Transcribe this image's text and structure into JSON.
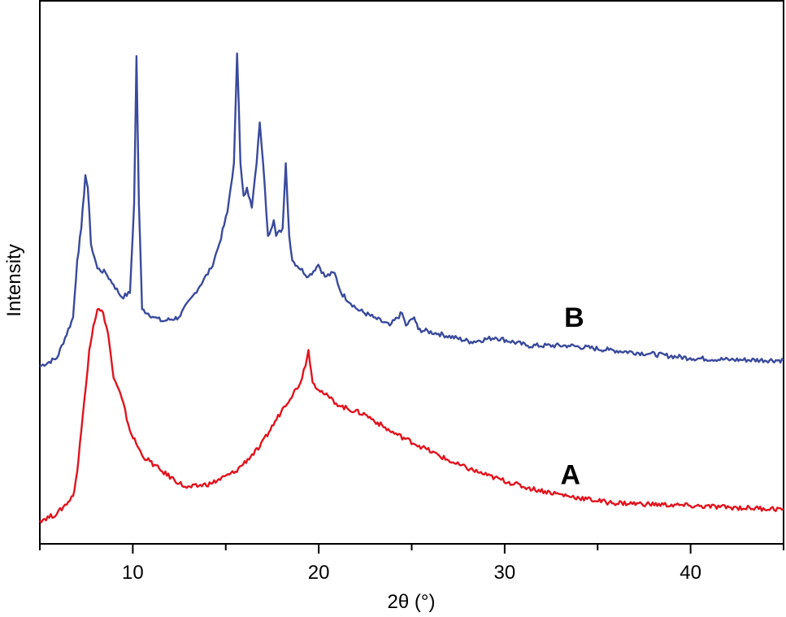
{
  "chart_data": {
    "type": "line",
    "title": "",
    "xlabel": "2θ (°)",
    "ylabel": "Intensity",
    "xlim": [
      5,
      45
    ],
    "ylim": [
      0,
      100
    ],
    "xticks": [
      10,
      20,
      30,
      40
    ],
    "xticks_minor": [
      5,
      15,
      25,
      35,
      45
    ],
    "xtick_labels": [
      "10",
      "20",
      "30",
      "40"
    ],
    "grid": false,
    "series": [
      {
        "name": "B",
        "color": "#3a4a9c",
        "x": [
          5.0,
          5.92,
          6.79,
          7.01,
          7.23,
          7.45,
          7.58,
          7.75,
          8.1,
          8.54,
          8.97,
          9.41,
          9.85,
          10.07,
          10.2,
          10.33,
          10.5,
          11.16,
          11.59,
          12.47,
          13.34,
          14.21,
          14.65,
          15.09,
          15.44,
          15.61,
          15.79,
          15.96,
          16.14,
          16.4,
          16.66,
          16.83,
          17.01,
          17.27,
          17.58,
          17.71,
          18.06,
          18.23,
          18.41,
          18.58,
          19.45,
          19.98,
          20.33,
          20.85,
          21.2,
          22.07,
          22.95,
          23.82,
          24.48,
          24.69,
          25.13,
          25.35,
          26.44,
          28.19,
          29.5,
          31.24,
          33.43,
          35.61,
          37.79,
          39.98,
          42.16,
          45.0
        ],
        "y": [
          32.7,
          34.2,
          41.7,
          52.2,
          58.1,
          67.9,
          65.6,
          55.2,
          50.7,
          49.9,
          47.7,
          45.4,
          46.2,
          62.6,
          89.8,
          62.6,
          43.2,
          41.7,
          41.0,
          41.7,
          46.2,
          50.7,
          55.2,
          61.1,
          70.1,
          90.3,
          70.1,
          64.1,
          65.6,
          61.9,
          70.1,
          77.6,
          70.1,
          56.7,
          59.6,
          56.7,
          58.1,
          70.1,
          56.7,
          52.2,
          49.2,
          51.4,
          49.2,
          49.9,
          46.2,
          43.2,
          41.7,
          40.2,
          42.5,
          40.2,
          41.7,
          39.5,
          38.7,
          37.2,
          38.0,
          36.5,
          36.5,
          35.7,
          35.0,
          34.2,
          33.9,
          33.8
        ]
      },
      {
        "name": "A",
        "color": "#e0141e",
        "x": [
          5.0,
          5.92,
          6.79,
          7.01,
          7.23,
          7.66,
          7.88,
          8.1,
          8.41,
          8.67,
          8.97,
          9.41,
          9.85,
          10.5,
          11.59,
          12.9,
          14.21,
          15.52,
          16.83,
          18.14,
          19.02,
          19.37,
          19.45,
          19.67,
          20.33,
          21.2,
          22.51,
          23.82,
          25.57,
          27.31,
          29.06,
          31.24,
          33.43,
          35.61,
          37.79,
          39.98,
          42.16,
          45.0
        ],
        "y": [
          4.3,
          5.5,
          8.8,
          13.3,
          20.8,
          35.7,
          40.2,
          43.2,
          42.5,
          38.7,
          30.5,
          26.8,
          20.8,
          16.3,
          13.3,
          10.3,
          11.1,
          13.3,
          17.8,
          25.3,
          29.7,
          34.2,
          35.7,
          29.7,
          27.5,
          25.3,
          23.8,
          20.8,
          17.8,
          14.8,
          12.6,
          10.3,
          8.8,
          7.6,
          7.3,
          7.0,
          6.7,
          6.4
        ]
      }
    ],
    "annotations": [
      {
        "text": "B",
        "x": 33.2,
        "y": 40
      },
      {
        "text": "A",
        "x": 33.0,
        "y": 11
      }
    ]
  }
}
